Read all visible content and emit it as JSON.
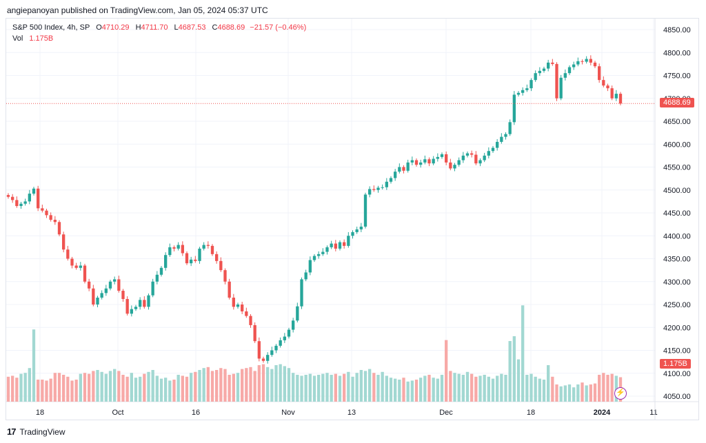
{
  "publisher_line": "angiepanoyan published on TradingView.com, Jan 05, 2024 05:37 UTC",
  "footer_brand": "TradingView",
  "legend": {
    "title": "S&P 500 Index, 4h, SP",
    "open_label": "O",
    "open": "4710.29",
    "high_label": "H",
    "high": "4711.70",
    "low_label": "L",
    "low": "4687.53",
    "close_label": "C",
    "close": "4688.69",
    "change": "−21.57 (−0.46%)",
    "vol_label": "Vol",
    "vol": "1.175B"
  },
  "colors": {
    "up": "#26a69a",
    "down": "#ef5350",
    "vol_up": "#a2d8d2",
    "vol_down": "#f7a9a7",
    "grid": "#f0f3fa",
    "price_line": "#ef5350",
    "icon_purple": "#9c27b0"
  },
  "chart_data": {
    "type": "candlestick",
    "title": "S&P 500 Index, 4h, SP",
    "y_axis": {
      "ticks": [
        4050,
        4100,
        4150,
        4200,
        4250,
        4300,
        4350,
        4400,
        4450,
        4500,
        4550,
        4600,
        4650,
        4700,
        4750,
        4800,
        4850
      ],
      "range": [
        4030,
        4875
      ]
    },
    "x_axis": {
      "tick_labels": [
        "18",
        "Oct",
        "16",
        "Nov",
        "13",
        "Dec",
        "18",
        "2024",
        "11"
      ]
    },
    "last_price": "4688.69",
    "last_volume": "1.175B",
    "close_path": [
      4485,
      4478,
      4465,
      4470,
      4475,
      4492,
      4503,
      4460,
      4455,
      4445,
      4435,
      4430,
      4403,
      4370,
      4350,
      4335,
      4330,
      4335,
      4300,
      4285,
      4250,
      4265,
      4275,
      4285,
      4300,
      4305,
      4280,
      4262,
      4230,
      4240,
      4245,
      4260,
      4245,
      4270,
      4300,
      4315,
      4330,
      4358,
      4375,
      4372,
      4380,
      4362,
      4340,
      4348,
      4345,
      4372,
      4380,
      4378,
      4360,
      4345,
      4325,
      4300,
      4265,
      4245,
      4250,
      4235,
      4225,
      4205,
      4170,
      4132,
      4127,
      4140,
      4150,
      4160,
      4172,
      4180,
      4195,
      4215,
      4246,
      4305,
      4320,
      4347,
      4356,
      4360,
      4365,
      4375,
      4383,
      4372,
      4386,
      4378,
      4400,
      4408,
      4414,
      4420,
      4490,
      4502,
      4500,
      4505,
      4506,
      4518,
      4526,
      4540,
      4550,
      4542,
      4560,
      4565,
      4555,
      4560,
      4567,
      4558,
      4568,
      4572,
      4578,
      4560,
      4547,
      4555,
      4565,
      4575,
      4580,
      4577,
      4558,
      4565,
      4575,
      4585,
      4592,
      4605,
      4616,
      4622,
      4648,
      4708,
      4712,
      4718,
      4722,
      4740,
      4755,
      4760,
      4765,
      4778,
      4775,
      4700,
      4745,
      4755,
      4768,
      4774,
      4781,
      4780,
      4786,
      4778,
      4770,
      4740,
      4728,
      4722,
      4700,
      4710,
      4688.69
    ],
    "volume_path": [
      1.18,
      1.19,
      1.17,
      1.21,
      1.22,
      1.27,
      1.67,
      1.15,
      1.15,
      1.14,
      1.16,
      1.22,
      1.22,
      1.2,
      1.18,
      1.14,
      1.15,
      1.21,
      1.22,
      1.21,
      1.24,
      1.25,
      1.23,
      1.21,
      1.24,
      1.26,
      1.24,
      1.2,
      1.18,
      1.22,
      1.17,
      1.18,
      1.21,
      1.23,
      1.25,
      1.19,
      1.16,
      1.17,
      1.14,
      1.15,
      1.2,
      1.19,
      1.18,
      1.22,
      1.23,
      1.25,
      1.27,
      1.28,
      1.24,
      1.25,
      1.27,
      1.26,
      1.2,
      1.21,
      1.22,
      1.26,
      1.27,
      1.28,
      1.24,
      1.3,
      1.31,
      1.28,
      1.26,
      1.3,
      1.31,
      1.29,
      1.27,
      1.22,
      1.2,
      1.19,
      1.2,
      1.21,
      1.19,
      1.2,
      1.21,
      1.22,
      1.2,
      1.21,
      1.19,
      1.21,
      1.23,
      1.18,
      1.22,
      1.25,
      1.24,
      1.26,
      1.22,
      1.2,
      1.23,
      1.19,
      1.17,
      1.16,
      1.15,
      1.17,
      1.13,
      1.14,
      1.15,
      1.17,
      1.19,
      1.2,
      1.17,
      1.16,
      1.2,
      1.56,
      1.24,
      1.22,
      1.21,
      1.2,
      1.23,
      1.21,
      1.18,
      1.19,
      1.2,
      1.18,
      1.16,
      1.19,
      1.21,
      1.2,
      1.55,
      1.6,
      1.36,
      1.92,
      1.2,
      1.21,
      1.18,
      1.16,
      1.15,
      1.3,
      1.18,
      1.1,
      1.08,
      1.09,
      1.1,
      1.07,
      1.1,
      1.12,
      1.09,
      1.1,
      1.11,
      1.2,
      1.22,
      1.2,
      1.21,
      1.19,
      1.175
    ]
  },
  "price_axis_ticks": [
    "4850.00",
    "4800.00",
    "4750.00",
    "4700.00",
    "4650.00",
    "4600.00",
    "4550.00",
    "4500.00",
    "4450.00",
    "4400.00",
    "4350.00",
    "4300.00",
    "4250.00",
    "4200.00",
    "4150.00",
    "4100.00",
    "4050.00"
  ]
}
